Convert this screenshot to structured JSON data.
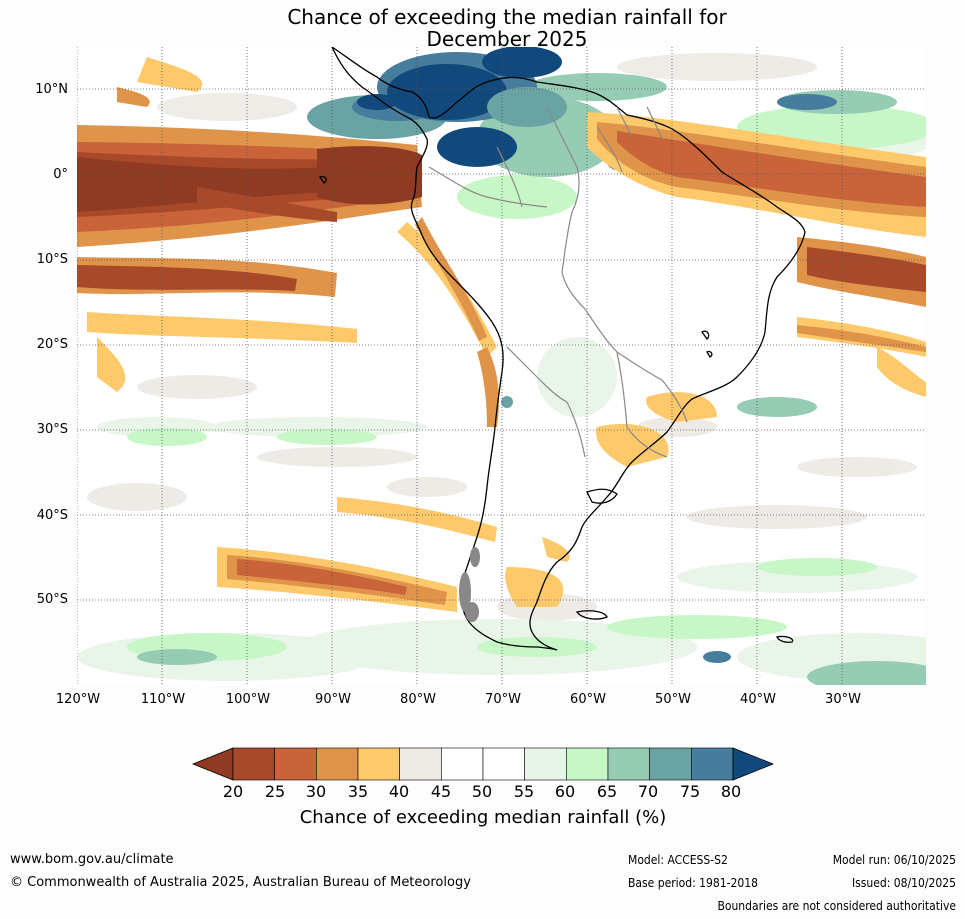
{
  "title": {
    "line1": "Chance of exceeding the median rainfall for",
    "line2": "December 2025"
  },
  "map": {
    "lat_labels": [
      "10°N",
      "0°",
      "10°S",
      "20°S",
      "30°S",
      "40°S",
      "50°S"
    ],
    "lon_labels": [
      "120°W",
      "110°W",
      "100°W",
      "90°W",
      "80°W",
      "70°W",
      "60°W",
      "50°W",
      "40°W",
      "30°W"
    ],
    "extent": {
      "lon_min": -121,
      "lon_max": -21,
      "lat_min": -60,
      "lat_max": 15
    }
  },
  "colorbar": {
    "ticks": [
      "20",
      "25",
      "30",
      "35",
      "40",
      "45",
      "50",
      "55",
      "60",
      "65",
      "70",
      "75",
      "80"
    ],
    "colors": [
      "#a8492a",
      "#c8633a",
      "#e0944a",
      "#fdc96a",
      "#ede9e4",
      "#ffffff",
      "#ffffff",
      "#e7f4e7",
      "#c7f7c7",
      "#96ccb4",
      "#6aa3a4",
      "#467c9c"
    ],
    "under_color": "#8f3a22",
    "over_color": "#11497d",
    "label": "Chance of exceeding median rainfall (%)"
  },
  "footer": {
    "website": "www.bom.gov.au/climate",
    "copyright": "© Commonwealth of Australia 2025, Australian Bureau of Meteorology",
    "model": "Model: ACCESS-S2",
    "base_period": "Base period: 1981-2018",
    "model_run": "Model run: 06/10/2025",
    "issued": "Issued: 08/10/2025",
    "disclaimer": "Boundaries are not considered authoritative"
  }
}
